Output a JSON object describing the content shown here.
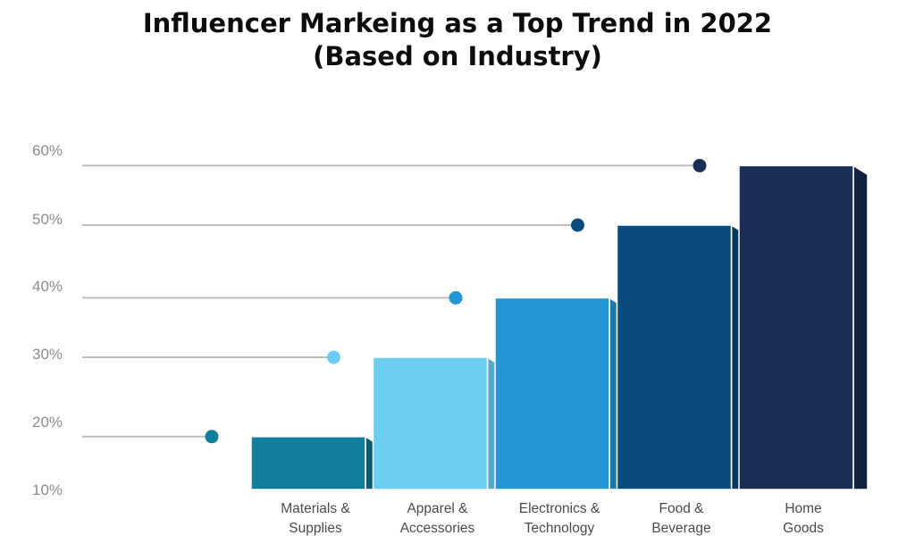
{
  "title_line1": "Influencer Markeing as a Top Trend in 2022",
  "title_line2": "(Based on Industry)",
  "chart_data": {
    "type": "bar",
    "title": "Influencer Markeing as a Top Trend in 2022 (Based on Industry)",
    "categories": [
      [
        "Materials &",
        "Supplies"
      ],
      [
        "Apparel &",
        "Accessories"
      ],
      [
        "Electronics &",
        "Technology"
      ],
      [
        "Food &",
        "Beverage"
      ],
      [
        "Home",
        "Goods"
      ]
    ],
    "values": [
      18,
      30,
      39,
      50,
      59
    ],
    "yticks": [
      "10%",
      "20%",
      "30%",
      "40%",
      "50%",
      "60%"
    ],
    "ylim": [
      10,
      60
    ],
    "colors": [
      "#117e9c",
      "#6dcdf1",
      "#2396d3",
      "#0a4a7c",
      "#1b2f56"
    ],
    "side_colors": [
      "#0c5a73",
      "#5aa8c8",
      "#1a78ad",
      "#07375e",
      "#13223f"
    ],
    "dot_colors": [
      "#117e9c",
      "#6dcdf1",
      "#2396d3",
      "#0a4a7c",
      "#1b2f56"
    ],
    "grid": false
  }
}
